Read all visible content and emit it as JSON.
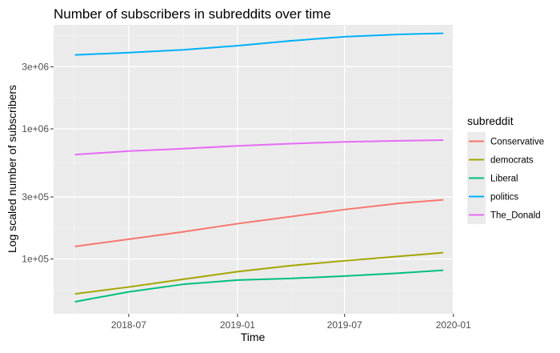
{
  "chart_data": {
    "type": "line",
    "title": "Number of subscribers in subreddits over time",
    "xlabel": "Time",
    "ylabel": "Log scaled number of subscribers",
    "x_axis": {
      "type": "date",
      "range": [
        "2018-02-24",
        "2019-12-31"
      ],
      "ticks": [
        {
          "value": "2018-07-01",
          "label": "2018-07"
        },
        {
          "value": "2019-01-01",
          "label": "2019-01"
        },
        {
          "value": "2019-07-01",
          "label": "2019-07"
        },
        {
          "value": "2020-01-01",
          "label": "2020-01"
        }
      ]
    },
    "y_axis": {
      "scale": "log10",
      "range": [
        38000,
        6300000
      ],
      "ticks": [
        {
          "value": 100000,
          "label": "1e+05"
        },
        {
          "value": 300000,
          "label": "3e+05"
        },
        {
          "value": 1000000,
          "label": "1e+06"
        },
        {
          "value": 3000000,
          "label": "3e+06"
        }
      ]
    },
    "grid": true,
    "legend": {
      "title": "subreddit",
      "position": "right"
    },
    "series": [
      {
        "name": "Conservative",
        "color": "#F8766D",
        "points": [
          [
            "2018-04-01",
            125000
          ],
          [
            "2018-07-01",
            142000
          ],
          [
            "2018-10-01",
            162000
          ],
          [
            "2019-01-01",
            187000
          ],
          [
            "2019-04-01",
            212000
          ],
          [
            "2019-07-01",
            240000
          ],
          [
            "2019-10-01",
            268000
          ],
          [
            "2019-12-15",
            285000
          ]
        ]
      },
      {
        "name": "democrats",
        "color": "#A3A500",
        "points": [
          [
            "2018-04-01",
            54000
          ],
          [
            "2018-07-01",
            61000
          ],
          [
            "2018-10-01",
            70000
          ],
          [
            "2019-01-01",
            80000
          ],
          [
            "2019-04-01",
            89000
          ],
          [
            "2019-07-01",
            97000
          ],
          [
            "2019-10-01",
            105000
          ],
          [
            "2019-12-15",
            112000
          ]
        ]
      },
      {
        "name": "Liberal",
        "color": "#00BF7D",
        "points": [
          [
            "2018-04-01",
            47000
          ],
          [
            "2018-07-01",
            56000
          ],
          [
            "2018-10-01",
            64000
          ],
          [
            "2019-01-01",
            69000
          ],
          [
            "2019-04-01",
            71000
          ],
          [
            "2019-07-01",
            74000
          ],
          [
            "2019-10-01",
            78000
          ],
          [
            "2019-12-15",
            82000
          ]
        ]
      },
      {
        "name": "politics",
        "color": "#00B0F6",
        "points": [
          [
            "2018-04-01",
            3700000
          ],
          [
            "2018-07-01",
            3850000
          ],
          [
            "2018-10-01",
            4050000
          ],
          [
            "2019-01-01",
            4350000
          ],
          [
            "2019-04-01",
            4750000
          ],
          [
            "2019-07-01",
            5100000
          ],
          [
            "2019-10-01",
            5320000
          ],
          [
            "2019-12-15",
            5420000
          ]
        ]
      },
      {
        "name": "The_Donald",
        "color": "#E76BF3",
        "points": [
          [
            "2018-04-01",
            635000
          ],
          [
            "2018-07-01",
            675000
          ],
          [
            "2018-10-01",
            705000
          ],
          [
            "2019-01-01",
            740000
          ],
          [
            "2019-04-01",
            770000
          ],
          [
            "2019-07-01",
            795000
          ],
          [
            "2019-10-01",
            810000
          ],
          [
            "2019-12-15",
            820000
          ]
        ]
      }
    ]
  }
}
